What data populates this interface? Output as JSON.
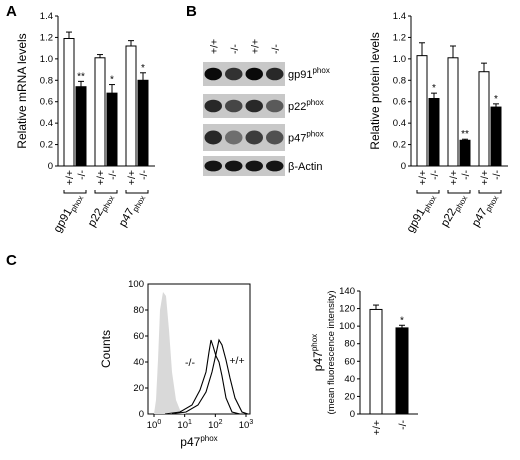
{
  "panels": {
    "a": "A",
    "b": "B",
    "c": "C"
  },
  "blot": {
    "lane_labels": [
      "+/+",
      "-/-",
      "+/+",
      "-/-"
    ],
    "bands": [
      {
        "base": "gp91",
        "sup": "phox"
      },
      {
        "base": "p22",
        "sup": "phox"
      },
      {
        "base": "p47",
        "sup": "phox"
      },
      {
        "base": "β-Actin",
        "sup": ""
      }
    ]
  },
  "flow": {
    "y_label": "Counts",
    "x_label_base": "p47",
    "x_label_sup": "phox",
    "x_ticks": [
      {
        "base": "10",
        "exp": "0"
      },
      {
        "base": "10",
        "exp": "1"
      },
      {
        "base": "10",
        "exp": "2"
      },
      {
        "base": "10",
        "exp": "3"
      }
    ],
    "annotations": {
      "ko": "-/-",
      "wt": "+/+"
    },
    "isotype_color": "#d9d9d9"
  },
  "chart_data": [
    {
      "type": "bar",
      "panel": "A",
      "ylabel": "Relative mRNA levels",
      "ylim": [
        0,
        1.4
      ],
      "yticks": [
        "0",
        "0.2",
        "0.4",
        "0.6",
        "0.8",
        "1.0",
        "1.2",
        "1.4"
      ],
      "categories": [
        {
          "base": "gp91",
          "sub": "phox"
        },
        {
          "base": "p22",
          "sub": "phox"
        },
        {
          "base": "p47",
          "sub": "phox"
        }
      ],
      "genotypes": [
        "+/+",
        "-/-"
      ],
      "series": [
        {
          "values": [
            1.19,
            1.01,
            1.12
          ],
          "errors": [
            0.06,
            0.03,
            0.05
          ],
          "color": "#ffffff",
          "significance": [
            "",
            "",
            ""
          ]
        },
        {
          "values": [
            0.74,
            0.68,
            0.8
          ],
          "errors": [
            0.05,
            0.08,
            0.07
          ],
          "color": "#000000",
          "significance": [
            "**",
            "*",
            "*"
          ]
        }
      ]
    },
    {
      "type": "bar",
      "panel": "B",
      "ylabel": "Relative protein levels",
      "ylim": [
        0,
        1.4
      ],
      "yticks": [
        "0",
        "0.2",
        "0.4",
        "0.6",
        "0.8",
        "1.0",
        "1.2",
        "1.4"
      ],
      "categories": [
        {
          "base": "gp91",
          "sub": "phox"
        },
        {
          "base": "p22",
          "sub": "phox"
        },
        {
          "base": "p47",
          "sub": "phox"
        }
      ],
      "genotypes": [
        "+/+",
        "-/-"
      ],
      "series": [
        {
          "values": [
            1.03,
            1.01,
            0.88
          ],
          "errors": [
            0.12,
            0.11,
            0.08
          ],
          "color": "#ffffff",
          "significance": [
            "",
            "",
            ""
          ]
        },
        {
          "values": [
            0.63,
            0.24,
            0.55
          ],
          "errors": [
            0.05,
            0.01,
            0.03
          ],
          "color": "#000000",
          "significance": [
            "*",
            "**",
            "*"
          ]
        }
      ]
    },
    {
      "type": "bar",
      "panel": "C",
      "ylabel_base": "p47",
      "ylabel_sup": "phox",
      "ylabel_sub2": "(mean fluorescence intensity)",
      "ylim": [
        0,
        140
      ],
      "yticks": [
        "0",
        "20",
        "40",
        "60",
        "80",
        "100",
        "120",
        "140"
      ],
      "categories": [
        "+/+",
        "-/-"
      ],
      "series": [
        {
          "values": [
            119,
            98
          ],
          "errors": [
            5,
            3
          ],
          "colors": [
            "#ffffff",
            "#000000"
          ],
          "significance": [
            "",
            "*"
          ]
        }
      ]
    }
  ]
}
